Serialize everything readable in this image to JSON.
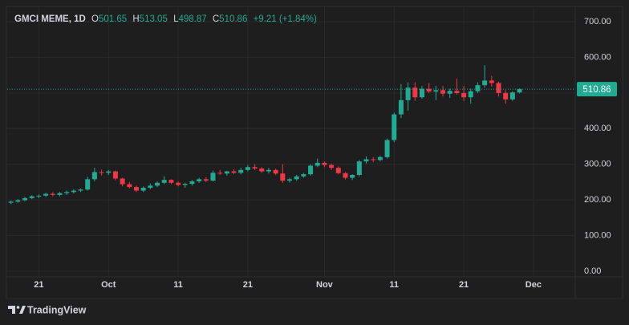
{
  "chart_data": {
    "type": "candlestick",
    "title": "GMCI MEME, 1D",
    "ohlc_labels": {
      "open": "O",
      "high": "H",
      "low": "L",
      "close": "C"
    },
    "change_label": "+9.21 (+1.84%)",
    "up_color": "#22ab94",
    "down_color": "#f23645",
    "x": [
      "09-17",
      "09-18",
      "09-19",
      "09-20",
      "09-21",
      "09-22",
      "09-23",
      "09-24",
      "09-25",
      "09-26",
      "09-27",
      "09-28",
      "09-29",
      "09-30",
      "10-01",
      "10-02",
      "10-03",
      "10-04",
      "10-05",
      "10-06",
      "10-07",
      "10-08",
      "10-09",
      "10-10",
      "10-11",
      "10-12",
      "10-13",
      "10-14",
      "10-15",
      "10-16",
      "10-17",
      "10-18",
      "10-19",
      "10-20",
      "10-21",
      "10-22",
      "10-23",
      "10-24",
      "10-25",
      "10-26",
      "10-27",
      "10-28",
      "10-29",
      "10-30",
      "10-31",
      "11-01",
      "11-02",
      "11-03",
      "11-04",
      "11-05",
      "11-06",
      "11-07",
      "11-08",
      "11-09",
      "11-10",
      "11-11",
      "11-12",
      "11-13",
      "11-14",
      "11-15",
      "11-16",
      "11-17",
      "11-18",
      "11-19",
      "11-20",
      "11-21",
      "11-22",
      "11-23",
      "11-24",
      "11-25",
      "11-26",
      "11-27",
      "11-28",
      "11-29"
    ],
    "open": [
      192,
      195,
      199,
      205,
      210,
      212,
      217,
      214,
      219,
      222,
      226,
      229,
      258,
      278,
      276,
      280,
      260,
      244,
      236,
      226,
      234,
      240,
      248,
      256,
      248,
      242,
      245,
      252,
      258,
      254,
      276,
      274,
      280,
      276,
      284,
      292,
      288,
      280,
      284,
      274,
      254,
      258,
      266,
      272,
      296,
      304,
      298,
      290,
      275,
      262,
      270,
      308,
      314,
      312,
      320,
      368,
      440,
      480,
      515,
      488,
      512,
      504,
      508,
      498,
      506,
      500,
      488,
      505,
      522,
      535,
      528,
      500,
      482,
      501.65
    ],
    "high": [
      198,
      202,
      208,
      213,
      215,
      220,
      222,
      222,
      226,
      230,
      232,
      265,
      290,
      285,
      284,
      282,
      262,
      250,
      240,
      238,
      246,
      252,
      266,
      258,
      252,
      248,
      256,
      262,
      264,
      282,
      284,
      282,
      286,
      290,
      298,
      300,
      292,
      290,
      288,
      300,
      262,
      270,
      276,
      300,
      316,
      308,
      302,
      294,
      278,
      272,
      312,
      322,
      320,
      324,
      372,
      445,
      525,
      530,
      530,
      520,
      528,
      520,
      520,
      512,
      540,
      520,
      512,
      530,
      578,
      548,
      532,
      508,
      505,
      513.05
    ],
    "low": [
      188,
      192,
      196,
      202,
      205,
      208,
      210,
      210,
      214,
      218,
      222,
      226,
      252,
      268,
      270,
      255,
      238,
      232,
      222,
      222,
      230,
      236,
      244,
      244,
      238,
      234,
      240,
      248,
      250,
      252,
      270,
      268,
      272,
      272,
      280,
      284,
      276,
      274,
      270,
      248,
      248,
      254,
      262,
      268,
      292,
      292,
      284,
      272,
      258,
      256,
      266,
      302,
      306,
      308,
      316,
      362,
      430,
      450,
      478,
      484,
      500,
      480,
      490,
      486,
      496,
      478,
      470,
      500,
      515,
      518,
      490,
      470,
      478,
      498.87
    ],
    "close": [
      195,
      199,
      205,
      210,
      212,
      217,
      214,
      219,
      222,
      226,
      229,
      258,
      278,
      276,
      280,
      260,
      244,
      236,
      226,
      234,
      240,
      248,
      256,
      248,
      242,
      245,
      252,
      258,
      254,
      276,
      274,
      280,
      276,
      284,
      292,
      288,
      280,
      284,
      274,
      254,
      258,
      266,
      272,
      296,
      304,
      298,
      290,
      275,
      262,
      270,
      308,
      314,
      312,
      320,
      368,
      440,
      480,
      515,
      488,
      512,
      504,
      508,
      498,
      506,
      500,
      488,
      505,
      522,
      535,
      528,
      500,
      482,
      501.65,
      510.86
    ],
    "ylim": [
      -16,
      743
    ],
    "yticks": [
      {
        "value": 0,
        "label": "0.00"
      },
      {
        "value": 100,
        "label": "100.00"
      },
      {
        "value": 200,
        "label": "200.00"
      },
      {
        "value": 300,
        "label": "300.00"
      },
      {
        "value": 400,
        "label": "400.00"
      },
      {
        "value": 500,
        "label": "500.00"
      },
      {
        "value": 600,
        "label": "600.00"
      },
      {
        "value": 700,
        "label": "700.00"
      }
    ],
    "xlim": [
      "09-16",
      "12-07"
    ],
    "xticks": [
      {
        "value": "09-21",
        "label": "21"
      },
      {
        "value": "10-01",
        "label": "Oct"
      },
      {
        "value": "10-11",
        "label": "11"
      },
      {
        "value": "10-21",
        "label": "21"
      },
      {
        "value": "11-01",
        "label": "Nov"
      },
      {
        "value": "11-11",
        "label": "11"
      },
      {
        "value": "11-21",
        "label": "21"
      },
      {
        "value": "12-01",
        "label": "Dec"
      }
    ],
    "grid": true,
    "footer": "TradingView"
  }
}
